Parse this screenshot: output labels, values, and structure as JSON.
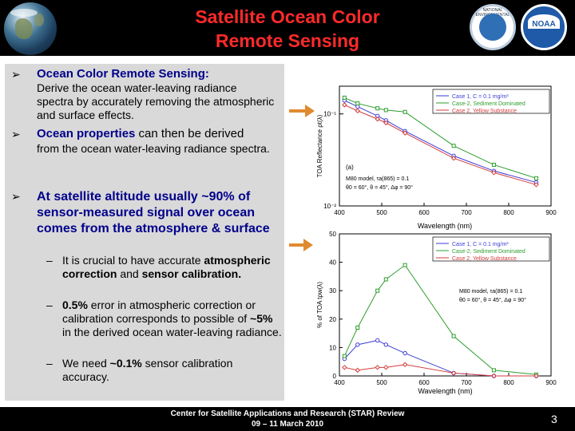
{
  "title": {
    "line1": "Satellite Ocean Color",
    "line2": "Remote Sensing"
  },
  "logos": {
    "noaa_text": "NOAA",
    "nesdis_text": "NATIONAL ENVIRONMENTAL SATELLITE"
  },
  "bullets": {
    "b1_head": "Ocean Color Remote Sensing:",
    "b1_body": "Derive the ocean water-leaving radiance spectra by accurately removing the atmospheric and surface effects.",
    "b2_head": "Ocean properties",
    "b2_tail": " can then be derived",
    "b2_body": "from the ocean water-leaving radiance spectra.",
    "b3": "At satellite altitude usually ~90% of sensor-measured signal over ocean comes from the atmosphere & surface",
    "sub1_a": "It is crucial to have accurate ",
    "sub1_b": "atmospheric correction",
    "sub1_c": " and ",
    "sub1_d": "sensor calibration.",
    "sub2_a": "0.5%",
    "sub2_b": " error in atmospheric correction or calibration corresponds to possible of ",
    "sub2_c": "~5%",
    "sub2_d": " in the derived ocean water-leaving radiance.",
    "sub3_a": "We need ",
    "sub3_b": "~0.1%",
    "sub3_c": " sensor calibration accuracy."
  },
  "footer": {
    "line1": "Center for Satellite Applications and Research (STAR) Review",
    "line2": "09 – 11 March 2010",
    "page": "3"
  },
  "colors": {
    "title": "#ff2a2a",
    "bullet_blue": "#00008b",
    "case1": "#3b3bd6",
    "case2s": "#2e9e2e",
    "case2y": "#d63b3b",
    "arrow": "#e08a30"
  },
  "chart_data": [
    {
      "type": "line",
      "ylabel": "TOA Reflectance ρt(λ)",
      "xlabel": "",
      "x": [
        412,
        443,
        490,
        510,
        555,
        670,
        765,
        865
      ],
      "ylog": true,
      "ylim": [
        0.01,
        0.2
      ],
      "xlim": [
        400,
        900
      ],
      "tick_y": [
        "10⁻¹",
        "10⁻²"
      ],
      "tick_x": [
        "400",
        "500",
        "600",
        "700",
        "800",
        "900"
      ],
      "panel_label": "(a)",
      "annotation1": "M80 model, τa(865) = 0.1",
      "annotation2": "θ0 = 60°,  θ = 45°,  Δφ = 90°",
      "series": [
        {
          "name": "Case 1, C = 0.1 mg/m³",
          "values": [
            0.14,
            0.12,
            0.095,
            0.085,
            0.065,
            0.035,
            0.024,
            0.018
          ]
        },
        {
          "name": "Case-2, Sediment Dominated",
          "values": [
            0.15,
            0.13,
            0.115,
            0.11,
            0.105,
            0.045,
            0.028,
            0.02
          ]
        },
        {
          "name": "Case 2, Yellow Substance",
          "values": [
            0.125,
            0.108,
            0.088,
            0.08,
            0.062,
            0.033,
            0.023,
            0.017
          ]
        }
      ]
    },
    {
      "type": "line",
      "ylabel": "% of TOA tρw(λ)",
      "xlabel": "Wavelength (nm)",
      "x": [
        412,
        443,
        490,
        510,
        555,
        670,
        765,
        865
      ],
      "ylim": [
        0,
        50
      ],
      "xlim": [
        400,
        900
      ],
      "tick_y": [
        "0",
        "10",
        "20",
        "30",
        "40",
        "50"
      ],
      "tick_x": [
        "400",
        "500",
        "600",
        "700",
        "800",
        "900"
      ],
      "annotation1": "M80 model, τa(865) = 0.1",
      "annotation2": "θ0 = 60°,  θ = 45°,  Δφ = 90°",
      "series": [
        {
          "name": "Case 1, C = 0.1 mg/m³",
          "values": [
            6,
            11,
            12.5,
            11,
            8,
            1,
            0,
            0
          ]
        },
        {
          "name": "Case-2, Sediment Dominated",
          "values": [
            7,
            17,
            30,
            34,
            39,
            14,
            2,
            0.5
          ]
        },
        {
          "name": "Case 2, Yellow Substance",
          "values": [
            3,
            2,
            3,
            3,
            4,
            1,
            0,
            0
          ]
        }
      ]
    }
  ],
  "xlabel_top": "Wavelength (nm)"
}
